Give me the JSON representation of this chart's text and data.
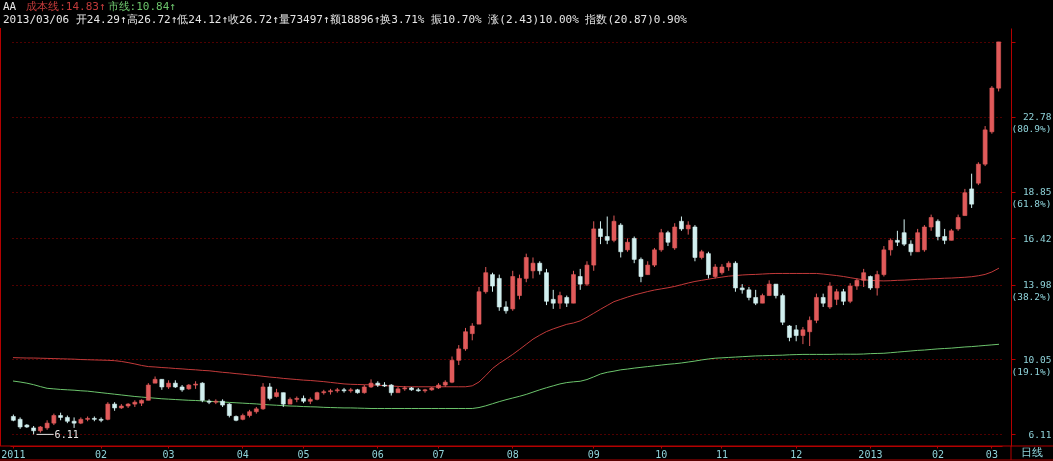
{
  "chart_data": {
    "type": "candlestick",
    "title": "AA",
    "subtitle": "2013/03/06 开24.29↑高26.72↑低24.12↑收26.72↑量73497↑额18896↑换3.71% 振10.70% 涨(2.43)10.00% 指数(20.87)0.90%",
    "categories": [
      "2011",
      null,
      null,
      null,
      null,
      null,
      null,
      null,
      null,
      null,
      null,
      null,
      null,
      "02",
      null,
      null,
      null,
      null,
      null,
      null,
      null,
      null,
      null,
      "03",
      null,
      null,
      null,
      null,
      null,
      null,
      null,
      null,
      null,
      null,
      "04",
      null,
      null,
      null,
      null,
      null,
      null,
      null,
      null,
      "05",
      null,
      null,
      null,
      null,
      null,
      null,
      null,
      null,
      null,
      null,
      "06",
      null,
      null,
      null,
      null,
      null,
      null,
      null,
      null,
      "07",
      null,
      null,
      null,
      null,
      null,
      null,
      null,
      null,
      null,
      null,
      "08",
      null,
      null,
      null,
      null,
      null,
      null,
      null,
      null,
      null,
      null,
      null,
      "09",
      null,
      null,
      null,
      null,
      null,
      null,
      null,
      null,
      null,
      "10",
      null,
      null,
      null,
      null,
      null,
      null,
      null,
      null,
      "11",
      null,
      null,
      null,
      null,
      null,
      null,
      null,
      null,
      null,
      null,
      "12",
      null,
      null,
      null,
      null,
      null,
      null,
      null,
      null,
      null,
      null,
      "2013",
      null,
      null,
      null,
      null,
      null,
      null,
      null,
      null,
      null,
      "02",
      null,
      null,
      null,
      null,
      null,
      null,
      null,
      "03",
      null
    ],
    "ohlc": [
      [
        7.05,
        7.15,
        6.8,
        6.85
      ],
      [
        6.9,
        7.0,
        6.4,
        6.5
      ],
      [
        6.6,
        6.65,
        6.45,
        6.5
      ],
      [
        6.45,
        6.55,
        6.11,
        6.3
      ],
      [
        6.3,
        6.55,
        6.2,
        6.5
      ],
      [
        6.45,
        6.85,
        6.35,
        6.7
      ],
      [
        6.7,
        7.2,
        6.6,
        7.1
      ],
      [
        7.1,
        7.25,
        6.85,
        7.0
      ],
      [
        7.0,
        7.1,
        6.7,
        6.8
      ],
      [
        6.8,
        7.0,
        6.45,
        6.7
      ],
      [
        6.7,
        7.0,
        6.65,
        6.9
      ],
      [
        6.9,
        7.05,
        6.8,
        6.95
      ],
      [
        6.95,
        7.05,
        6.8,
        6.9
      ],
      [
        6.9,
        7.0,
        6.75,
        6.85
      ],
      [
        6.9,
        7.8,
        6.85,
        7.7
      ],
      [
        7.7,
        7.8,
        7.35,
        7.5
      ],
      [
        7.5,
        7.7,
        7.45,
        7.6
      ],
      [
        7.6,
        7.75,
        7.5,
        7.7
      ],
      [
        7.7,
        7.9,
        7.55,
        7.8
      ],
      [
        7.75,
        7.95,
        7.6,
        7.9
      ],
      [
        7.9,
        8.8,
        7.9,
        8.7
      ],
      [
        8.8,
        9.15,
        8.8,
        9.0
      ],
      [
        9.0,
        9.0,
        8.45,
        8.6
      ],
      [
        8.6,
        8.95,
        8.5,
        8.8
      ],
      [
        8.8,
        8.95,
        8.55,
        8.6
      ],
      [
        8.6,
        8.7,
        8.35,
        8.45
      ],
      [
        8.5,
        8.75,
        8.45,
        8.7
      ],
      [
        8.7,
        8.9,
        8.5,
        8.75
      ],
      [
        8.8,
        8.85,
        7.8,
        7.9
      ],
      [
        7.85,
        7.95,
        7.7,
        7.8
      ],
      [
        7.8,
        7.95,
        7.7,
        7.85
      ],
      [
        7.85,
        7.95,
        7.55,
        7.65
      ],
      [
        7.7,
        7.75,
        7.0,
        7.1
      ],
      [
        7.05,
        7.1,
        6.8,
        6.85
      ],
      [
        6.9,
        7.2,
        6.85,
        7.1
      ],
      [
        7.1,
        7.4,
        7.0,
        7.3
      ],
      [
        7.3,
        7.55,
        7.2,
        7.45
      ],
      [
        7.45,
        8.8,
        7.4,
        8.6
      ],
      [
        8.6,
        8.8,
        7.9,
        8.0
      ],
      [
        8.1,
        8.5,
        8.05,
        8.3
      ],
      [
        8.3,
        8.3,
        7.55,
        7.7
      ],
      [
        7.7,
        8.05,
        7.7,
        7.95
      ],
      [
        7.95,
        8.1,
        7.8,
        8.0
      ],
      [
        8.0,
        8.15,
        7.75,
        7.85
      ],
      [
        7.85,
        8.05,
        7.7,
        7.95
      ],
      [
        7.95,
        8.35,
        7.9,
        8.3
      ],
      [
        8.3,
        8.45,
        8.2,
        8.35
      ],
      [
        8.35,
        8.5,
        8.2,
        8.4
      ],
      [
        8.4,
        8.55,
        8.3,
        8.45
      ],
      [
        8.45,
        8.55,
        8.3,
        8.4
      ],
      [
        8.4,
        8.55,
        8.3,
        8.45
      ],
      [
        8.45,
        8.5,
        8.25,
        8.3
      ],
      [
        8.3,
        8.7,
        8.25,
        8.6
      ],
      [
        8.6,
        9.0,
        8.55,
        8.8
      ],
      [
        8.8,
        8.9,
        8.6,
        8.7
      ],
      [
        8.7,
        8.85,
        8.6,
        8.65
      ],
      [
        8.7,
        8.75,
        8.15,
        8.3
      ],
      [
        8.3,
        8.6,
        8.3,
        8.5
      ],
      [
        8.5,
        8.65,
        8.4,
        8.55
      ],
      [
        8.55,
        8.6,
        8.4,
        8.45
      ],
      [
        8.45,
        8.55,
        8.35,
        8.4
      ],
      [
        8.4,
        8.5,
        8.3,
        8.45
      ],
      [
        8.45,
        8.6,
        8.4,
        8.55
      ],
      [
        8.55,
        8.8,
        8.5,
        8.7
      ],
      [
        8.7,
        8.95,
        8.6,
        8.85
      ],
      [
        8.85,
        10.2,
        8.8,
        10.0
      ],
      [
        10.0,
        10.8,
        9.75,
        10.6
      ],
      [
        10.6,
        11.7,
        10.5,
        11.5
      ],
      [
        11.4,
        11.95,
        11.05,
        11.8
      ],
      [
        11.9,
        13.85,
        11.9,
        13.6
      ],
      [
        13.6,
        14.9,
        13.5,
        14.6
      ],
      [
        14.5,
        14.6,
        13.6,
        13.9
      ],
      [
        14.3,
        14.5,
        12.6,
        12.8
      ],
      [
        12.8,
        13.1,
        12.45,
        12.6
      ],
      [
        12.7,
        14.7,
        12.6,
        14.4
      ],
      [
        13.4,
        14.5,
        13.2,
        14.3
      ],
      [
        14.3,
        15.6,
        14.1,
        15.4
      ],
      [
        14.7,
        15.4,
        14.3,
        15.1
      ],
      [
        15.1,
        15.2,
        14.5,
        14.7
      ],
      [
        14.6,
        14.8,
        12.9,
        13.1
      ],
      [
        13.2,
        13.7,
        12.7,
        13.0
      ],
      [
        13.0,
        13.6,
        12.7,
        13.4
      ],
      [
        13.3,
        13.4,
        12.8,
        13.0
      ],
      [
        13.0,
        14.7,
        13.0,
        14.5
      ],
      [
        14.4,
        14.8,
        13.7,
        14.0
      ],
      [
        14.0,
        15.2,
        13.9,
        15.0
      ],
      [
        15.0,
        17.3,
        14.7,
        16.9
      ],
      [
        16.9,
        17.3,
        16.1,
        16.5
      ],
      [
        16.5,
        17.55,
        16.1,
        16.3
      ],
      [
        16.3,
        17.6,
        16.2,
        17.3
      ],
      [
        17.1,
        17.2,
        15.4,
        15.7
      ],
      [
        15.8,
        16.4,
        15.7,
        16.2
      ],
      [
        16.4,
        16.5,
        15.1,
        15.3
      ],
      [
        15.3,
        15.4,
        14.1,
        14.4
      ],
      [
        14.5,
        15.2,
        14.5,
        15.0
      ],
      [
        15.0,
        15.9,
        14.9,
        15.8
      ],
      [
        15.8,
        16.9,
        15.7,
        16.7
      ],
      [
        16.7,
        16.8,
        16.0,
        16.2
      ],
      [
        15.9,
        17.2,
        15.8,
        17.0
      ],
      [
        17.3,
        17.55,
        16.8,
        16.9
      ],
      [
        16.9,
        17.3,
        16.6,
        17.1
      ],
      [
        17.0,
        17.1,
        15.2,
        15.4
      ],
      [
        15.4,
        15.8,
        15.3,
        15.7
      ],
      [
        15.6,
        15.7,
        14.3,
        14.5
      ],
      [
        14.4,
        15.05,
        14.3,
        14.9
      ],
      [
        14.6,
        15.05,
        14.5,
        14.9
      ],
      [
        14.9,
        15.2,
        14.7,
        15.1
      ],
      [
        15.1,
        15.2,
        13.6,
        13.8
      ],
      [
        13.8,
        14.0,
        13.5,
        13.7
      ],
      [
        13.7,
        13.85,
        13.15,
        13.3
      ],
      [
        13.3,
        13.7,
        12.9,
        13.0
      ],
      [
        13.0,
        13.5,
        13.0,
        13.4
      ],
      [
        13.4,
        14.2,
        13.4,
        14.0
      ],
      [
        14.0,
        14.0,
        13.25,
        13.4
      ],
      [
        13.4,
        13.5,
        11.85,
        12.0
      ],
      [
        11.8,
        11.85,
        11.0,
        11.2
      ],
      [
        11.6,
        11.85,
        11.0,
        11.3
      ],
      [
        11.3,
        11.75,
        10.85,
        11.6
      ],
      [
        11.5,
        12.3,
        10.75,
        12.1
      ],
      [
        12.1,
        13.5,
        11.95,
        13.3
      ],
      [
        13.3,
        13.5,
        12.8,
        13.0
      ],
      [
        12.8,
        14.1,
        12.7,
        13.9
      ],
      [
        13.2,
        13.75,
        12.9,
        13.6
      ],
      [
        13.6,
        13.75,
        12.9,
        13.1
      ],
      [
        13.1,
        14.05,
        13.0,
        13.9
      ],
      [
        13.9,
        14.3,
        13.7,
        14.2
      ],
      [
        14.2,
        14.8,
        13.85,
        14.6
      ],
      [
        14.4,
        14.45,
        13.7,
        13.8
      ],
      [
        13.8,
        14.7,
        13.4,
        14.5
      ],
      [
        14.5,
        16.0,
        14.4,
        15.8
      ],
      [
        15.8,
        16.4,
        15.5,
        16.3
      ],
      [
        16.3,
        16.8,
        16.0,
        16.2
      ],
      [
        16.7,
        17.4,
        16.0,
        16.1
      ],
      [
        16.1,
        16.3,
        15.5,
        15.7
      ],
      [
        15.7,
        16.9,
        15.7,
        16.7
      ],
      [
        15.8,
        17.1,
        15.7,
        17.0
      ],
      [
        17.0,
        17.65,
        16.8,
        17.5
      ],
      [
        17.3,
        17.4,
        16.3,
        16.5
      ],
      [
        16.5,
        16.9,
        16.1,
        16.3
      ],
      [
        16.3,
        16.9,
        16.3,
        16.8
      ],
      [
        16.9,
        17.65,
        16.8,
        17.5
      ],
      [
        17.6,
        19.0,
        17.6,
        18.8
      ],
      [
        19.0,
        19.8,
        18.0,
        18.2
      ],
      [
        19.3,
        20.4,
        19.2,
        20.3
      ],
      [
        20.3,
        22.3,
        20.2,
        22.1
      ],
      [
        22.0,
        24.4,
        21.9,
        24.3
      ],
      [
        24.29,
        26.72,
        24.12,
        26.72
      ]
    ],
    "colors": [
      "#d2f0f0",
      "#d2f0f0",
      "#d2f0f0",
      "#d2f0f0",
      "#e05a5a",
      "#e05a5a",
      "#e05a5a",
      "#d2f0f0",
      "#d2f0f0",
      "#d2f0f0",
      "#e05a5a",
      "#e05a5a",
      "#d2f0f0",
      "#d2f0f0",
      "#e05a5a",
      "#d2f0f0",
      "#e05a5a",
      "#e05a5a",
      "#e05a5a",
      "#e05a5a",
      "#e05a5a",
      "#e05a5a",
      "#d2f0f0",
      "#e05a5a",
      "#d2f0f0",
      "#d2f0f0",
      "#e05a5a",
      "#e05a5a",
      "#d2f0f0",
      "#d2f0f0",
      "#e05a5a",
      "#d2f0f0",
      "#d2f0f0",
      "#d2f0f0",
      "#e05a5a",
      "#e05a5a",
      "#e05a5a",
      "#e05a5a",
      "#d2f0f0",
      "#e05a5a",
      "#d2f0f0",
      "#e05a5a",
      "#e05a5a",
      "#d2f0f0",
      "#e05a5a",
      "#e05a5a",
      "#e05a5a",
      "#e05a5a",
      "#e05a5a",
      "#d2f0f0",
      "#e05a5a",
      "#d2f0f0",
      "#e05a5a",
      "#e05a5a",
      "#d2f0f0",
      "#d2f0f0",
      "#d2f0f0",
      "#e05a5a",
      "#e05a5a",
      "#d2f0f0",
      "#d2f0f0",
      "#e05a5a",
      "#e05a5a",
      "#e05a5a",
      "#e05a5a",
      "#e05a5a",
      "#e05a5a",
      "#e05a5a",
      "#e05a5a",
      "#e05a5a",
      "#e05a5a",
      "#d2f0f0",
      "#d2f0f0",
      "#d2f0f0",
      "#e05a5a",
      "#e05a5a",
      "#e05a5a",
      "#e05a5a",
      "#d2f0f0",
      "#d2f0f0",
      "#d2f0f0",
      "#e05a5a",
      "#d2f0f0",
      "#e05a5a",
      "#d2f0f0",
      "#e05a5a",
      "#e05a5a",
      "#d2f0f0",
      "#d2f0f0",
      "#e05a5a",
      "#d2f0f0",
      "#e05a5a",
      "#d2f0f0",
      "#d2f0f0",
      "#e05a5a",
      "#e05a5a",
      "#e05a5a",
      "#d2f0f0",
      "#e05a5a",
      "#d2f0f0",
      "#e05a5a",
      "#d2f0f0",
      "#e05a5a",
      "#d2f0f0",
      "#e05a5a",
      "#e05a5a",
      "#e05a5a",
      "#d2f0f0",
      "#d2f0f0",
      "#d2f0f0",
      "#d2f0f0",
      "#e05a5a",
      "#e05a5a",
      "#d2f0f0",
      "#d2f0f0",
      "#d2f0f0",
      "#d2f0f0",
      "#e05a5a",
      "#e05a5a",
      "#e05a5a",
      "#d2f0f0",
      "#e05a5a",
      "#e05a5a",
      "#d2f0f0",
      "#e05a5a",
      "#e05a5a",
      "#e05a5a",
      "#d2f0f0",
      "#e05a5a",
      "#e05a5a",
      "#e05a5a",
      "#d2f0f0",
      "#d2f0f0",
      "#d2f0f0",
      "#e05a5a",
      "#e05a5a",
      "#e05a5a",
      "#d2f0f0",
      "#d2f0f0",
      "#e05a5a",
      "#e05a5a",
      "#e05a5a",
      "#d2f0f0",
      "#e05a5a",
      "#e05a5a",
      "#e05a5a",
      "#e05a5a"
    ],
    "series": [
      {
        "type": "line",
        "name": "成本线:14.83↑",
        "color": "#c23a3a",
        "values": [
          10.14,
          10.13,
          10.12,
          10.12,
          10.11,
          10.1,
          10.09,
          10.08,
          10.07,
          10.06,
          10.04,
          10.03,
          10.02,
          10.01,
          10.0,
          9.98,
          9.94,
          9.88,
          9.81,
          9.73,
          9.67,
          9.65,
          9.62,
          9.6,
          9.57,
          9.55,
          9.52,
          9.5,
          9.47,
          9.45,
          9.41,
          9.37,
          9.34,
          9.3,
          9.27,
          9.23,
          9.2,
          9.16,
          9.12,
          9.09,
          9.05,
          9.02,
          8.99,
          8.96,
          8.94,
          8.91,
          8.88,
          8.84,
          8.8,
          8.76,
          8.74,
          8.73,
          8.72,
          8.71,
          8.69,
          8.67,
          8.65,
          8.63,
          8.61,
          8.61,
          8.61,
          8.61,
          8.61,
          8.61,
          8.61,
          8.61,
          8.61,
          8.61,
          8.66,
          8.86,
          9.2,
          9.57,
          9.84,
          10.07,
          10.31,
          10.57,
          10.84,
          11.11,
          11.32,
          11.51,
          11.65,
          11.77,
          11.89,
          11.96,
          12.07,
          12.26,
          12.47,
          12.68,
          12.88,
          13.08,
          13.2,
          13.32,
          13.43,
          13.52,
          13.61,
          13.69,
          13.75,
          13.81,
          13.88,
          13.97,
          14.06,
          14.14,
          14.2,
          14.26,
          14.32,
          14.37,
          14.42,
          14.45,
          14.48,
          14.5,
          14.51,
          14.53,
          14.55,
          14.56,
          14.56,
          14.56,
          14.56,
          14.56,
          14.56,
          14.56,
          14.53,
          14.49,
          14.45,
          14.4,
          14.34,
          14.28,
          14.23,
          14.2,
          14.18,
          14.17,
          14.18,
          14.2,
          14.21,
          14.23,
          14.25,
          14.26,
          14.28,
          14.29,
          14.31,
          14.32,
          14.34,
          14.36,
          14.39,
          14.44,
          14.51,
          14.64,
          14.83
        ]
      },
      {
        "type": "line",
        "name": "市线:10.84↑",
        "color": "#6cc46c",
        "values": [
          8.91,
          8.86,
          8.8,
          8.72,
          8.62,
          8.53,
          8.5,
          8.47,
          8.45,
          8.43,
          8.4,
          8.38,
          8.34,
          8.3,
          8.26,
          8.22,
          8.18,
          8.14,
          8.1,
          8.07,
          8.04,
          8.01,
          7.98,
          7.96,
          7.94,
          7.92,
          7.9,
          7.89,
          7.87,
          7.85,
          7.83,
          7.81,
          7.79,
          7.77,
          7.75,
          7.73,
          7.71,
          7.68,
          7.66,
          7.64,
          7.62,
          7.6,
          7.59,
          7.57,
          7.56,
          7.55,
          7.53,
          7.52,
          7.51,
          7.5,
          7.5,
          7.49,
          7.48,
          7.47,
          7.47,
          7.47,
          7.47,
          7.47,
          7.47,
          7.47,
          7.47,
          7.47,
          7.47,
          7.47,
          7.47,
          7.47,
          7.47,
          7.47,
          7.47,
          7.52,
          7.61,
          7.72,
          7.83,
          7.93,
          8.02,
          8.11,
          8.21,
          8.33,
          8.45,
          8.56,
          8.66,
          8.76,
          8.83,
          8.87,
          8.9,
          8.99,
          9.13,
          9.28,
          9.37,
          9.43,
          9.5,
          9.54,
          9.59,
          9.63,
          9.67,
          9.71,
          9.75,
          9.79,
          9.82,
          9.86,
          9.91,
          9.96,
          10.02,
          10.07,
          10.11,
          10.13,
          10.15,
          10.17,
          10.19,
          10.21,
          10.23,
          10.24,
          10.25,
          10.26,
          10.27,
          10.29,
          10.3,
          10.31,
          10.31,
          10.31,
          10.31,
          10.31,
          10.32,
          10.32,
          10.32,
          10.32,
          10.33,
          10.35,
          10.36,
          10.37,
          10.4,
          10.43,
          10.46,
          10.49,
          10.52,
          10.54,
          10.57,
          10.6,
          10.62,
          10.64,
          10.67,
          10.7,
          10.72,
          10.75,
          10.78,
          10.81,
          10.84
        ]
      }
    ],
    "ylim": [
      5.5,
      27.45
    ],
    "yticks": [
      6.11,
      {
        "value": 10.05,
        "label": "10.05\n(19.1%)"
      },
      {
        "value": 13.98,
        "label": "13.98\n(38.2%)"
      },
      16.42,
      {
        "value": 18.85,
        "label": "18.85\n(61.8%)"
      },
      {
        "value": 22.78,
        "label": "22.78\n(80.9%)"
      },
      {
        "value": 26.72,
        "label": null
      }
    ],
    "grid": "y",
    "legend": "top left",
    "annotations": [
      "6.11",
      "日线"
    ]
  }
}
